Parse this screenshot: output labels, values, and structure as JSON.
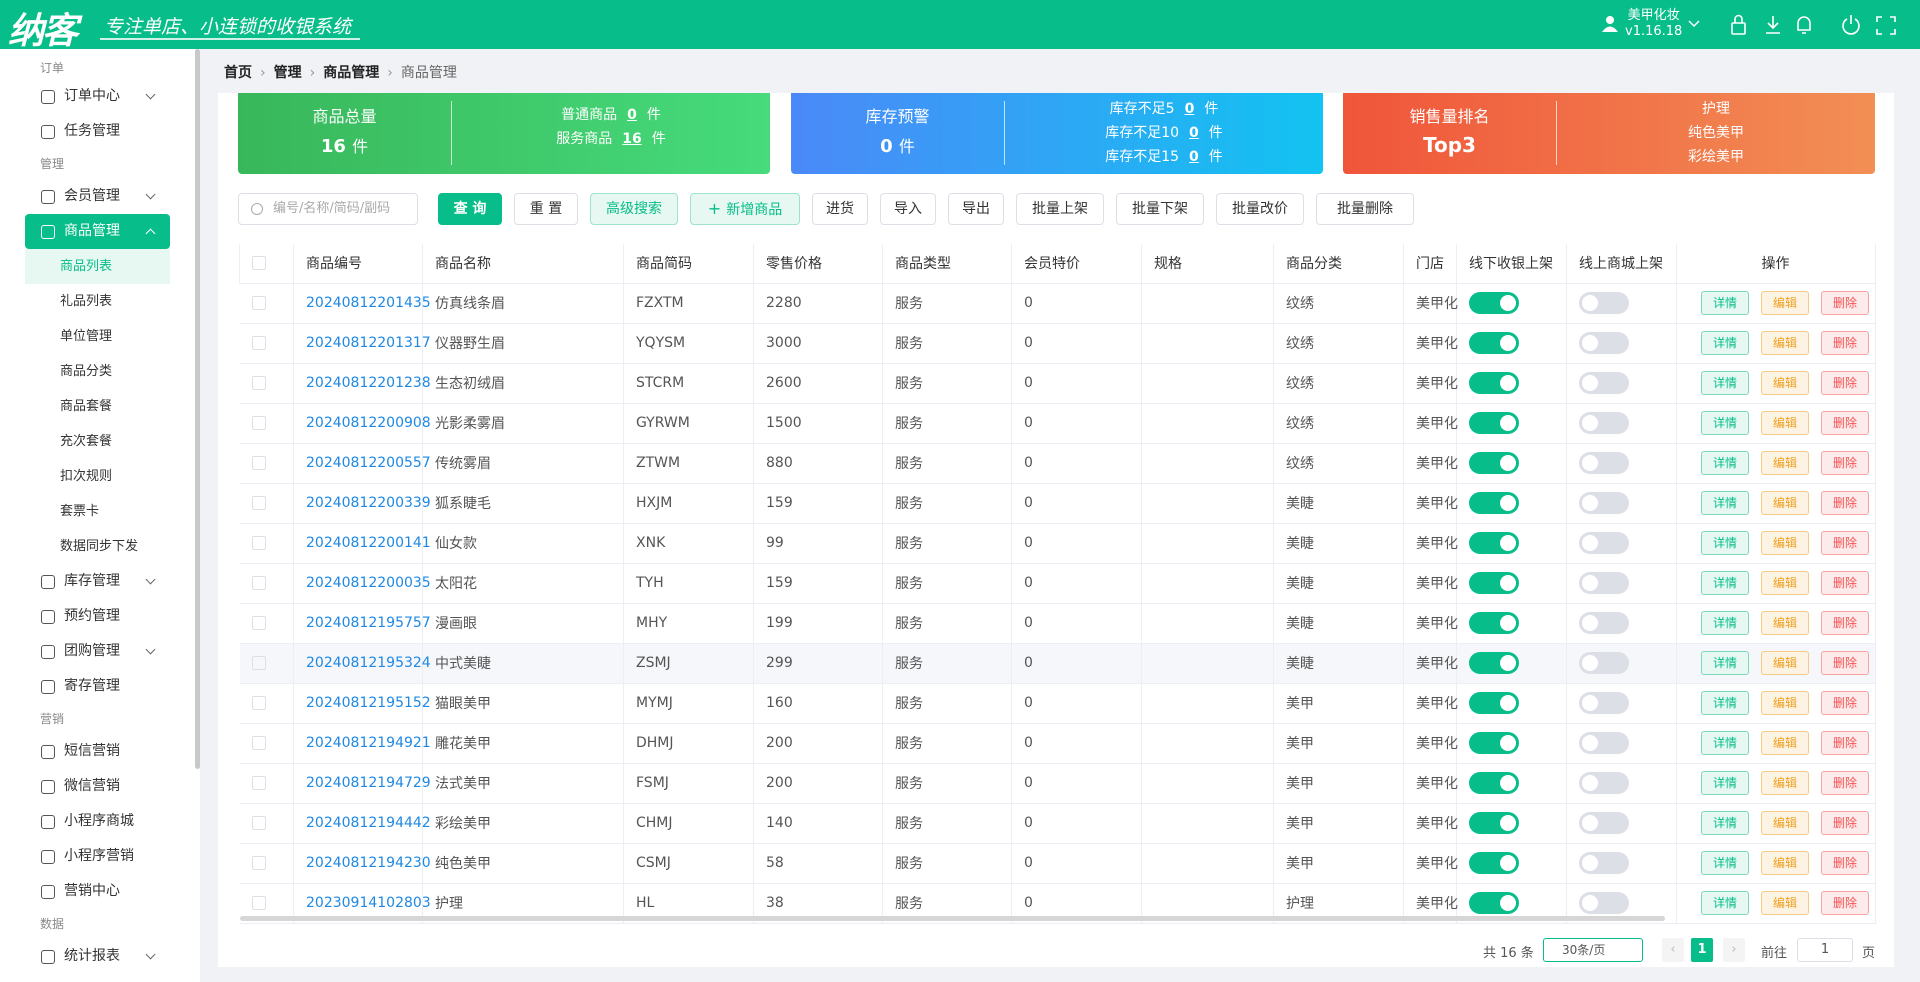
{
  "header": {
    "logo": "纳客",
    "slogan": "专注单店、小连锁的收银系统",
    "user": "美甲化妆",
    "version": "v1.16.18"
  },
  "sidebar": [
    {
      "section": "订单",
      "items": [
        {
          "label": "订单中心",
          "arrow": true
        },
        {
          "label": "任务管理"
        }
      ]
    },
    {
      "section": "管理",
      "items": [
        {
          "label": "会员管理",
          "arrow": true
        },
        {
          "label": "商品管理",
          "arrow": true,
          "active": true,
          "children": [
            {
              "label": "商品列表",
              "active": true
            },
            {
              "label": "礼品列表"
            },
            {
              "label": "单位管理"
            },
            {
              "label": "商品分类"
            },
            {
              "label": "商品套餐"
            },
            {
              "label": "充次套餐"
            },
            {
              "label": "扣次规则"
            },
            {
              "label": "套票卡"
            },
            {
              "label": "数据同步下发"
            }
          ]
        },
        {
          "label": "库存管理",
          "arrow": true
        },
        {
          "label": "预约管理"
        },
        {
          "label": "团购管理",
          "arrow": true
        },
        {
          "label": "寄存管理"
        }
      ]
    },
    {
      "section": "营销",
      "items": [
        {
          "label": "短信营销"
        },
        {
          "label": "微信营销"
        },
        {
          "label": "小程序商城"
        },
        {
          "label": "小程序营销"
        },
        {
          "label": "营销中心"
        }
      ]
    },
    {
      "section": "数据",
      "items": [
        {
          "label": "统计报表",
          "arrow": true
        }
      ]
    }
  ],
  "breadcrumb": [
    "首页",
    "管理",
    "商品管理",
    "商品管理"
  ],
  "stats": {
    "unit": "件",
    "total": {
      "label": "商品总量",
      "value": 16,
      "items": [
        {
          "label": "普通商品",
          "value": 0
        },
        {
          "label": "服务商品",
          "value": 16
        }
      ]
    },
    "stock": {
      "label": "库存预警",
      "value": 0,
      "items": [
        {
          "label": "库存不足5",
          "value": 0
        },
        {
          "label": "库存不足10",
          "value": 0
        },
        {
          "label": "库存不足15",
          "value": 0
        }
      ]
    },
    "sales": {
      "label": "销售量排名",
      "value": "Top3",
      "items": [
        "护理",
        "纯色美甲",
        "彩绘美甲"
      ]
    }
  },
  "toolbar": {
    "search_placeholder": "编号/名称/简码/副码",
    "buttons": [
      {
        "label": "查 询",
        "style": "primary"
      },
      {
        "label": "重 置"
      },
      {
        "label": "高级搜索",
        "style": "light"
      },
      {
        "label": "新增商品",
        "style": "light",
        "plus": true
      },
      {
        "label": "进货"
      },
      {
        "label": "导入"
      },
      {
        "label": "导出"
      },
      {
        "label": "批量上架"
      },
      {
        "label": "批量下架"
      },
      {
        "label": "批量改价"
      },
      {
        "label": "批量删除"
      }
    ]
  },
  "table": {
    "columns": [
      "商品编号",
      "商品名称",
      "商品简码",
      "零售价格",
      "商品类型",
      "会员特价",
      "规格",
      "商品分类",
      "门店",
      "线下收银上架",
      "线上商城上架",
      "操作"
    ],
    "actions": [
      "详情",
      "编辑",
      "删除"
    ],
    "rows": [
      {
        "code": "20240812201435",
        "name": "仿真线条眉",
        "short": "FZXTM",
        "price": 2280,
        "type": "服务",
        "member_price": 0,
        "category": "纹绣",
        "store": "美甲化",
        "offline": true,
        "online": false
      },
      {
        "code": "20240812201317",
        "name": "仪器野生眉",
        "short": "YQYSM",
        "price": 3000,
        "type": "服务",
        "member_price": 0,
        "category": "纹绣",
        "store": "美甲化",
        "offline": true,
        "online": false
      },
      {
        "code": "20240812201238",
        "name": "生态初绒眉",
        "short": "STCRM",
        "price": 2600,
        "type": "服务",
        "member_price": 0,
        "category": "纹绣",
        "store": "美甲化",
        "offline": true,
        "online": false
      },
      {
        "code": "20240812200908",
        "name": "光影柔雾眉",
        "short": "GYRWM",
        "price": 1500,
        "type": "服务",
        "member_price": 0,
        "category": "纹绣",
        "store": "美甲化",
        "offline": true,
        "online": false
      },
      {
        "code": "20240812200557",
        "name": "传统雾眉",
        "short": "ZTWM",
        "price": 880,
        "type": "服务",
        "member_price": 0,
        "category": "纹绣",
        "store": "美甲化",
        "offline": true,
        "online": false
      },
      {
        "code": "20240812200339",
        "name": "狐系睫毛",
        "short": "HXJM",
        "price": 159,
        "type": "服务",
        "member_price": 0,
        "category": "美睫",
        "store": "美甲化",
        "offline": true,
        "online": false
      },
      {
        "code": "20240812200141",
        "name": "仙女款",
        "short": "XNK",
        "price": 99,
        "type": "服务",
        "member_price": 0,
        "category": "美睫",
        "store": "美甲化",
        "offline": true,
        "online": false
      },
      {
        "code": "20240812200035",
        "name": "太阳花",
        "short": "TYH",
        "price": 159,
        "type": "服务",
        "member_price": 0,
        "category": "美睫",
        "store": "美甲化",
        "offline": true,
        "online": false
      },
      {
        "code": "20240812195757",
        "name": "漫画眼",
        "short": "MHY",
        "price": 199,
        "type": "服务",
        "member_price": 0,
        "category": "美睫",
        "store": "美甲化",
        "offline": true,
        "online": false
      },
      {
        "code": "20240812195324",
        "name": "中式美睫",
        "short": "ZSMJ",
        "price": 299,
        "type": "服务",
        "member_price": 0,
        "category": "美睫",
        "store": "美甲化",
        "offline": true,
        "online": false,
        "hover": true
      },
      {
        "code": "20240812195152",
        "name": "猫眼美甲",
        "short": "MYMJ",
        "price": 160,
        "type": "服务",
        "member_price": 0,
        "category": "美甲",
        "store": "美甲化",
        "offline": true,
        "online": false
      },
      {
        "code": "20240812194921",
        "name": "雕花美甲",
        "short": "DHMJ",
        "price": 200,
        "type": "服务",
        "member_price": 0,
        "category": "美甲",
        "store": "美甲化",
        "offline": true,
        "online": false
      },
      {
        "code": "20240812194729",
        "name": "法式美甲",
        "short": "FSMJ",
        "price": 200,
        "type": "服务",
        "member_price": 0,
        "category": "美甲",
        "store": "美甲化",
        "offline": true,
        "online": false
      },
      {
        "code": "20240812194442",
        "name": "彩绘美甲",
        "short": "CHMJ",
        "price": 140,
        "type": "服务",
        "member_price": 0,
        "category": "美甲",
        "store": "美甲化",
        "offline": true,
        "online": false
      },
      {
        "code": "20240812194230",
        "name": "纯色美甲",
        "short": "CSMJ",
        "price": 58,
        "type": "服务",
        "member_price": 0,
        "category": "美甲",
        "store": "美甲化",
        "offline": true,
        "online": false
      },
      {
        "code": "20230914102803",
        "name": "护理",
        "short": "HL",
        "price": 38,
        "type": "服务",
        "member_price": 0,
        "category": "护理",
        "store": "美甲化",
        "offline": true,
        "online": false
      }
    ]
  },
  "pagination": {
    "total": "共 16 条",
    "size": "30条/页",
    "page": "1",
    "goto": "前往",
    "goto_value": "1",
    "suffix": "页"
  }
}
